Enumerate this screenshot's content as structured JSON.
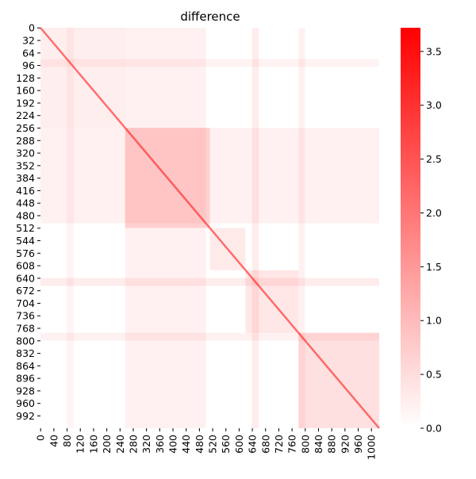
{
  "chart_data": {
    "type": "heatmap",
    "title": "difference",
    "xlabel": "",
    "ylabel": "",
    "matrix_size": 1024,
    "x_tick_labels": [
      "0",
      "40",
      "80",
      "120",
      "160",
      "200",
      "240",
      "280",
      "320",
      "360",
      "400",
      "440",
      "480",
      "520",
      "560",
      "600",
      "640",
      "680",
      "720",
      "760",
      "800",
      "840",
      "880",
      "920",
      "960",
      "1000"
    ],
    "y_tick_labels": [
      "0",
      "32",
      "64",
      "96",
      "128",
      "160",
      "192",
      "224",
      "256",
      "288",
      "320",
      "352",
      "384",
      "416",
      "448",
      "480",
      "512",
      "544",
      "576",
      "608",
      "640",
      "672",
      "704",
      "736",
      "768",
      "800",
      "832",
      "864",
      "896",
      "928",
      "960",
      "992"
    ],
    "color_scale": {
      "min": 0.0,
      "max": 3.72,
      "colors": [
        "#ffffff",
        "#ff0000"
      ],
      "tick_labels": [
        "0.0",
        "0.5",
        "1.0",
        "1.5",
        "2.0",
        "2.5",
        "3.0",
        "3.5"
      ]
    },
    "diagonal_value": 2.0,
    "blocks": [
      {
        "name": "block-1",
        "start": 0,
        "end": 256,
        "value": 0.25
      },
      {
        "name": "block-2",
        "start": 256,
        "end": 512,
        "value": 0.5
      },
      {
        "name": "block-3",
        "start": 512,
        "end": 620,
        "value": 0.3
      },
      {
        "name": "block-4",
        "start": 620,
        "end": 780,
        "value": 0.35
      },
      {
        "name": "block-5",
        "start": 780,
        "end": 1024,
        "value": 0.45
      }
    ],
    "bands": [
      {
        "start": 256,
        "end": 500,
        "value": 0.35
      },
      {
        "start": 640,
        "end": 660,
        "value": 0.45
      },
      {
        "start": 780,
        "end": 800,
        "value": 0.35
      },
      {
        "start": 80,
        "end": 100,
        "value": 0.3
      }
    ],
    "grid": false,
    "colorbar_position": "right"
  }
}
